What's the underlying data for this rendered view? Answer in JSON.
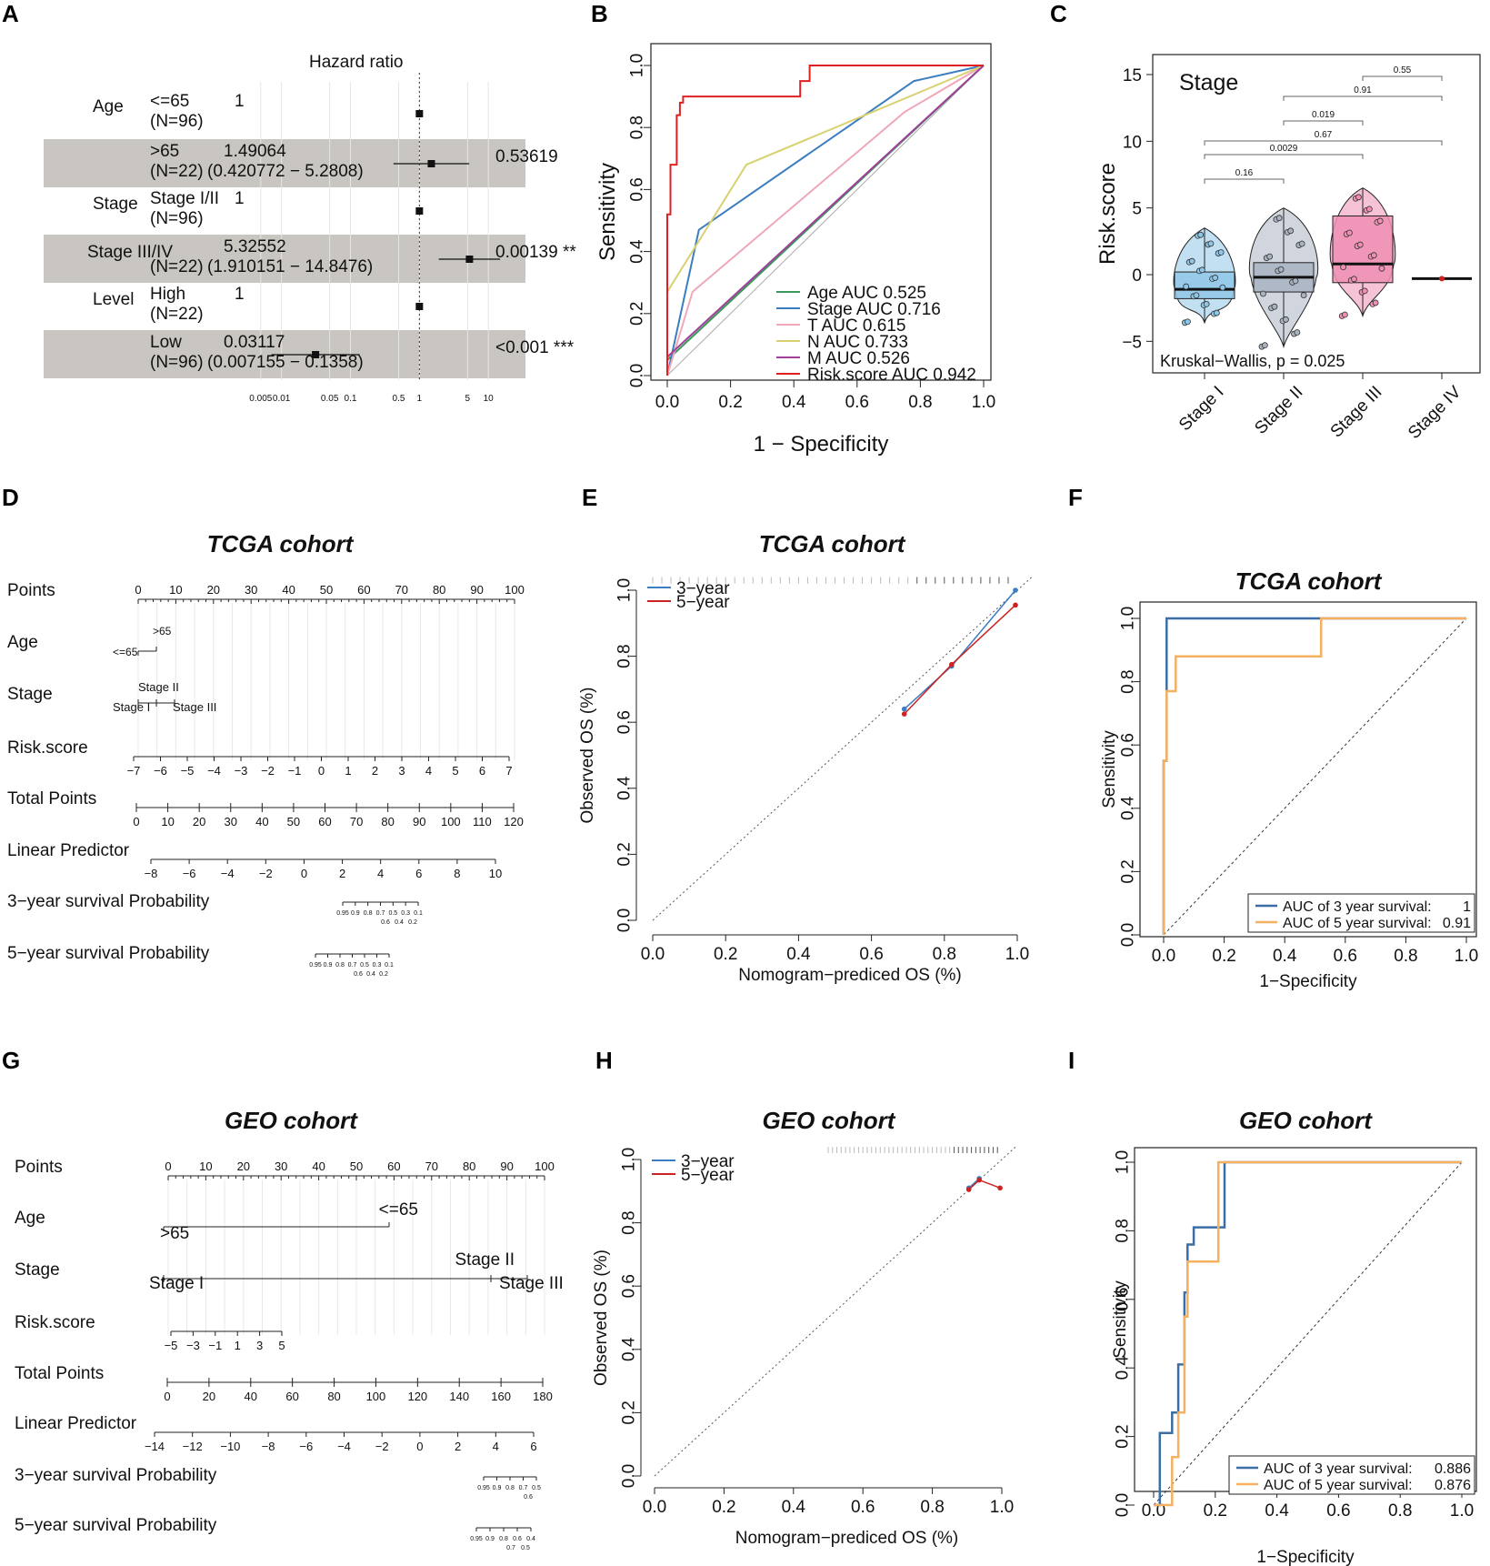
{
  "chart_data": [
    {
      "panel": "A",
      "type": "forest",
      "header": "Hazard ratio",
      "rows": [
        {
          "group": "Age",
          "level": "<=65",
          "n": "(N=96)",
          "hr_text": "1",
          "ci_text": "",
          "p": "",
          "hr": 1,
          "lo": 1,
          "hi": 1,
          "shaded": false
        },
        {
          "group": "",
          "level": ">65",
          "n": "(N=22)",
          "hr_text": "1.49064",
          "ci_text": "(0.420772 − 5.2808)",
          "p": "0.53619",
          "hr": 1.49064,
          "lo": 0.420772,
          "hi": 5.2808,
          "shaded": true
        },
        {
          "group": "Stage",
          "level": "Stage I/II",
          "n": "(N=96)",
          "hr_text": "1",
          "ci_text": "",
          "p": "",
          "hr": 1,
          "lo": 1,
          "hi": 1,
          "shaded": false
        },
        {
          "group": "Stage III/IV",
          "level": "",
          "n": "(N=22)",
          "hr_text": "5.32552",
          "ci_text": "(1.910151 − 14.8476)",
          "p": "0.00139 **",
          "hr": 5.32552,
          "lo": 1.910151,
          "hi": 14.8476,
          "shaded": true
        },
        {
          "group": "Level",
          "level": "High",
          "n": "(N=22)",
          "hr_text": "1",
          "ci_text": "",
          "p": "",
          "hr": 1,
          "lo": 1,
          "hi": 1,
          "shaded": false
        },
        {
          "group": "",
          "level": "Low",
          "n": "(N=96)",
          "hr_text": "0.03117",
          "ci_text": "(0.007155 − 0.1358)",
          "p": "<0.001 ***",
          "hr": 0.03117,
          "lo": 0.007155,
          "hi": 0.1358,
          "shaded": true
        }
      ],
      "xticks": [
        "0.005",
        "0.01",
        "0.05",
        "0.1",
        "0.5",
        "1",
        "5",
        "10"
      ],
      "xtick_values": [
        0.005,
        0.01,
        0.05,
        0.1,
        0.5,
        1,
        5,
        10
      ]
    },
    {
      "panel": "B",
      "type": "line",
      "xlabel": "1 − Specificity",
      "ylabel": "Sensitivity",
      "ticks": [
        "0.0",
        "0.2",
        "0.4",
        "0.6",
        "0.8",
        "1.0"
      ],
      "series": [
        {
          "name": "Age AUC 0.525",
          "color": "#3a9a5b",
          "x": [
            0,
            1
          ],
          "y": [
            0.05,
            1
          ]
        },
        {
          "name": "Stage AUC 0.716",
          "color": "#3a7dc1",
          "x": [
            0,
            0.1,
            0.78,
            1
          ],
          "y": [
            0,
            0.47,
            0.95,
            1
          ]
        },
        {
          "name": "T AUC 0.615",
          "color": "#f0a8b8",
          "x": [
            0,
            0.08,
            0.75,
            1
          ],
          "y": [
            0,
            0.27,
            0.85,
            1
          ]
        },
        {
          "name": "N AUC 0.733",
          "color": "#d9d070",
          "x": [
            0,
            0.25,
            1
          ],
          "y": [
            0.27,
            0.68,
            1
          ]
        },
        {
          "name": "M AUC 0.526",
          "color": "#a0409a",
          "x": [
            0,
            1
          ],
          "y": [
            0.06,
            1
          ]
        },
        {
          "name": "Risk.score AUC 0.942",
          "color": "#e02020",
          "x": [
            0,
            0,
            0.01,
            0.01,
            0.03,
            0.03,
            0.04,
            0.04,
            0.05,
            0.05,
            0.42,
            0.42,
            0.45,
            0.45,
            1
          ],
          "y": [
            0,
            0.52,
            0.52,
            0.68,
            0.68,
            0.84,
            0.84,
            0.88,
            0.88,
            0.9,
            0.9,
            0.95,
            0.95,
            1,
            1
          ]
        }
      ]
    },
    {
      "panel": "C",
      "type": "violin",
      "title": "Stage",
      "ylabel": "Risk.score",
      "yticks": [
        "−5",
        "0",
        "5",
        "10",
        "15"
      ],
      "categories": [
        "Stage I",
        "Stage II",
        "Stage III",
        "Stage IV"
      ],
      "colors": [
        "#8fc7e8",
        "#a9b3c2",
        "#ef8fb4",
        "#cc2222"
      ],
      "box": [
        {
          "q1": -1.8,
          "med": -1.1,
          "q3": 0.2,
          "lo": -3.6,
          "hi": 3.5
        },
        {
          "q1": -1.3,
          "med": -0.2,
          "q3": 0.9,
          "lo": -5.4,
          "hi": 5.0
        },
        {
          "q1": -0.6,
          "med": 0.8,
          "q3": 4.4,
          "lo": -3.1,
          "hi": 6.5
        },
        {
          "q1": -0.3,
          "med": -0.3,
          "q3": -0.3,
          "lo": -0.3,
          "hi": -0.3
        }
      ],
      "comparisons": [
        {
          "a": 1,
          "b": 2,
          "label": "0.16"
        },
        {
          "a": 1,
          "b": 3,
          "label": "0.0029"
        },
        {
          "a": 1,
          "b": 4,
          "label": "0.67"
        },
        {
          "a": 2,
          "b": 3,
          "label": "0.019"
        },
        {
          "a": 2,
          "b": 4,
          "label": "0.91"
        },
        {
          "a": 3,
          "b": 4,
          "label": "0.55"
        }
      ],
      "annotation": "Kruskal−Wallis, p = 0.025"
    },
    {
      "panel": "D",
      "type": "nomogram",
      "title": "TCGA cohort",
      "labels": [
        "Points",
        "Age",
        "Stage",
        "Risk.score",
        "Total Points",
        "Linear Predictor",
        "3−year survival Probability",
        "5−year survival Probability"
      ],
      "points_ticks": [
        "0",
        "10",
        "20",
        "30",
        "40",
        "50",
        "60",
        "70",
        "80",
        "90",
        "100"
      ],
      "age_labels": [
        ">65",
        "<=65"
      ],
      "stage_labels": [
        "Stage II",
        "Stage I",
        "Stage III"
      ],
      "risk_ticks": [
        "−7",
        "−6",
        "−5",
        "−4",
        "−3",
        "−2",
        "−1",
        "0",
        "1",
        "2",
        "3",
        "4",
        "5",
        "6",
        "7"
      ],
      "total_ticks": [
        "0",
        "10",
        "20",
        "30",
        "40",
        "50",
        "60",
        "70",
        "80",
        "90",
        "100",
        "110",
        "120"
      ],
      "lp_ticks": [
        "−8",
        "−6",
        "−4",
        "−2",
        "0",
        "2",
        "4",
        "6",
        "8",
        "10"
      ],
      "s3_top": [
        "0.95",
        "0.9",
        "0.8",
        "0.7",
        "0.5",
        "0.3",
        "0.1"
      ],
      "s3_bottom": [
        "0.6",
        "0.4",
        "0.2"
      ],
      "s5_top": [
        "0.95",
        "0.9",
        "0.8",
        "0.7",
        "0.5",
        "0.3",
        "0.1"
      ],
      "s5_bottom": [
        "0.6",
        "0.4",
        "0.2"
      ]
    },
    {
      "panel": "E",
      "type": "calibration",
      "title": "TCGA cohort",
      "xlabel": "Nomogram−prediced OS (%)",
      "ylabel": "Observed OS (%)",
      "ticks": [
        "0.0",
        "0.2",
        "0.4",
        "0.6",
        "0.8",
        "1.0"
      ],
      "legend": [
        "3−year",
        "5−year"
      ],
      "series": [
        {
          "name": "3−year",
          "color": "#3a7dc1",
          "x": [
            0.69,
            0.82,
            0.995
          ],
          "y": [
            0.64,
            0.77,
            1.0
          ]
        },
        {
          "name": "5−year",
          "color": "#cc2222",
          "x": [
            0.69,
            0.82,
            0.995
          ],
          "y": [
            0.625,
            0.775,
            0.955
          ]
        }
      ]
    },
    {
      "panel": "F",
      "type": "line",
      "title": "TCGA cohort",
      "xlabel": "1−Specificity",
      "ylabel": "Sensitivity",
      "ticks": [
        "0.0",
        "0.2",
        "0.4",
        "0.6",
        "0.8",
        "1.0"
      ],
      "legend_labels": [
        "AUC of 3 year survival:",
        "AUC of 5 year survival:"
      ],
      "legend_values": [
        "1",
        "0.91"
      ],
      "series": [
        {
          "name": "AUC of 3 year survival: 1",
          "color": "#3a6ea5",
          "x": [
            0,
            0,
            0.01,
            0.01,
            1
          ],
          "y": [
            0,
            0.55,
            0.55,
            1,
            1
          ]
        },
        {
          "name": "AUC of 5 year survival: 0.91",
          "color": "#f5b060",
          "x": [
            0,
            0,
            0.01,
            0.01,
            0.04,
            0.04,
            0.13,
            0.13,
            0.52,
            0.52,
            1
          ],
          "y": [
            0,
            0.55,
            0.55,
            0.77,
            0.77,
            0.88,
            0.88,
            0.88,
            0.88,
            1,
            1
          ]
        }
      ]
    },
    {
      "panel": "G",
      "type": "nomogram",
      "title": "GEO cohort",
      "labels": [
        "Points",
        "Age",
        "Stage",
        "Risk.score",
        "Total Points",
        "Linear Predictor",
        "3−year survival Probability",
        "5−year survival Probability"
      ],
      "points_ticks": [
        "0",
        "10",
        "20",
        "30",
        "40",
        "50",
        "60",
        "70",
        "80",
        "90",
        "100"
      ],
      "age_labels": [
        "<=65",
        ">65"
      ],
      "stage_labels": [
        "Stage II",
        "Stage I",
        "Stage III"
      ],
      "risk_ticks": [
        "−5",
        "−3",
        "−1",
        "1",
        "3",
        "5"
      ],
      "total_ticks": [
        "0",
        "20",
        "40",
        "60",
        "80",
        "100",
        "120",
        "140",
        "160",
        "180"
      ],
      "lp_ticks": [
        "−14",
        "−12",
        "−10",
        "−8",
        "−6",
        "−4",
        "−2",
        "0",
        "2",
        "4",
        "6"
      ],
      "s3_top": [
        "0.95",
        "0.9",
        "0.8",
        "0.7",
        "0.5"
      ],
      "s3_bottom": [
        "0.6"
      ],
      "s5_top": [
        "0.95",
        "0.9",
        "0.8",
        "0.6",
        "0.4"
      ],
      "s5_bottom": [
        "0.7",
        "0.5"
      ]
    },
    {
      "panel": "H",
      "type": "calibration",
      "title": "GEO cohort",
      "xlabel": "Nomogram−prediced OS (%)",
      "ylabel": "Observed OS (%)",
      "ticks": [
        "0.0",
        "0.2",
        "0.4",
        "0.6",
        "0.8",
        "1.0"
      ],
      "legend": [
        "3−year",
        "5−year"
      ],
      "series": [
        {
          "name": "3−year",
          "color": "#3a7dc1",
          "x": [
            0.905,
            0.935
          ],
          "y": [
            0.91,
            0.94
          ]
        },
        {
          "name": "5−year",
          "color": "#cc2222",
          "x": [
            0.905,
            0.935,
            0.995
          ],
          "y": [
            0.905,
            0.935,
            0.91
          ]
        }
      ]
    },
    {
      "panel": "I",
      "type": "line",
      "title": "GEO cohort",
      "xlabel": "1−Specificity",
      "ylabel": "Sensitivity",
      "ticks": [
        "0.0",
        "0.2",
        "0.4",
        "0.6",
        "0.8",
        "1.0"
      ],
      "legend_labels": [
        "AUC of 3 year survival:",
        "AUC of 5 year survival:"
      ],
      "legend_values": [
        "0.886",
        "0.876"
      ],
      "series": [
        {
          "name": "AUC of 3 year survival: 0.886",
          "color": "#3a6ea5",
          "x": [
            0,
            0.02,
            0.02,
            0.06,
            0.06,
            0.08,
            0.08,
            0.1,
            0.1,
            0.11,
            0.11,
            0.13,
            0.13,
            0.23,
            0.23,
            1
          ],
          "y": [
            0,
            0,
            0.21,
            0.21,
            0.27,
            0.27,
            0.41,
            0.41,
            0.62,
            0.62,
            0.76,
            0.76,
            0.81,
            0.81,
            1,
            1
          ]
        },
        {
          "name": "AUC of 5 year survival: 0.876",
          "color": "#f5b060",
          "x": [
            0,
            0.06,
            0.06,
            0.08,
            0.08,
            0.1,
            0.1,
            0.11,
            0.11,
            0.21,
            0.21,
            1
          ],
          "y": [
            0,
            0,
            0.14,
            0.14,
            0.27,
            0.27,
            0.55,
            0.55,
            0.71,
            0.71,
            1,
            1
          ]
        }
      ]
    }
  ],
  "panel_letters": [
    "A",
    "B",
    "C",
    "D",
    "E",
    "F",
    "G",
    "H",
    "I"
  ]
}
